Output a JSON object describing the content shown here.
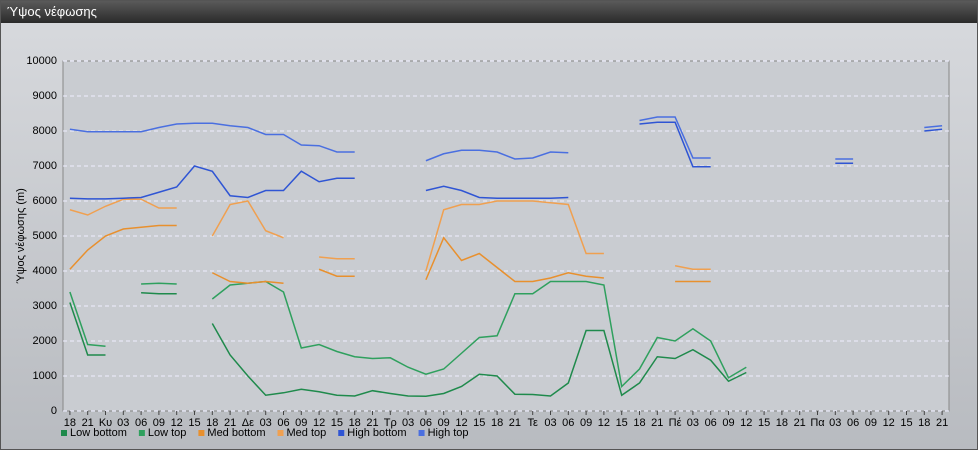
{
  "chart_data": {
    "type": "line",
    "title": "Ύψος νέφωσης",
    "ylabel": "Ύψος νέφωσης (m)",
    "categories": [
      "18",
      "21",
      "Κυ",
      "03",
      "06",
      "09",
      "12",
      "15",
      "18",
      "21",
      "Δε",
      "03",
      "06",
      "09",
      "12",
      "15",
      "18",
      "21",
      "Τρ",
      "03",
      "06",
      "09",
      "12",
      "15",
      "18",
      "21",
      "Τε",
      "03",
      "06",
      "09",
      "12",
      "15",
      "18",
      "21",
      "Πέ",
      "03",
      "06",
      "09",
      "12",
      "15",
      "18",
      "21",
      "Πα",
      "03",
      "06",
      "09",
      "12",
      "15",
      "18",
      "21"
    ],
    "ylim": [
      0,
      10000
    ],
    "yticks": [
      0,
      1000,
      2000,
      3000,
      4000,
      5000,
      6000,
      7000,
      8000,
      9000,
      10000
    ],
    "grid": true,
    "series": [
      {
        "name": "Low bottom",
        "color": "#1f8a4c",
        "values": [
          3100,
          1600,
          1600,
          null,
          3380,
          3350,
          3350,
          null,
          2500,
          1600,
          1000,
          450,
          520,
          620,
          550,
          450,
          430,
          580,
          500,
          430,
          420,
          500,
          700,
          1050,
          1000,
          480,
          470,
          430,
          800,
          2300,
          2300,
          450,
          800,
          1550,
          1500,
          1750,
          1450,
          850,
          1100,
          null,
          null,
          null,
          null,
          null,
          null,
          null,
          null,
          null,
          null,
          null
        ]
      },
      {
        "name": "Low top",
        "color": "#2fa05e",
        "values": [
          3400,
          1900,
          1850,
          null,
          3630,
          3650,
          3630,
          null,
          3200,
          3600,
          3650,
          3700,
          3400,
          1800,
          1900,
          1700,
          1550,
          1500,
          1520,
          1250,
          1050,
          1200,
          1650,
          2100,
          2150,
          3350,
          3350,
          3700,
          3700,
          3700,
          3600,
          700,
          1200,
          2100,
          2000,
          2350,
          2000,
          950,
          1250,
          null,
          null,
          null,
          null,
          null,
          null,
          null,
          null,
          null,
          null,
          null
        ]
      },
      {
        "name": "Med bottom",
        "color": "#e8902e",
        "values": [
          4050,
          4600,
          5000,
          5200,
          5250,
          5300,
          5300,
          null,
          3950,
          3700,
          3650,
          3700,
          3650,
          null,
          4050,
          3850,
          3850,
          null,
          null,
          null,
          3750,
          4950,
          4300,
          4500,
          4100,
          3700,
          3700,
          3800,
          3950,
          3850,
          3800,
          null,
          null,
          null,
          3700,
          3700,
          3700,
          null,
          null,
          null,
          null,
          null,
          null,
          null,
          null,
          null,
          null,
          null,
          null,
          null
        ]
      },
      {
        "name": "Med top",
        "color": "#f0a050",
        "values": [
          5750,
          5600,
          5850,
          6050,
          6050,
          5800,
          5800,
          null,
          5000,
          5900,
          6000,
          5150,
          4950,
          null,
          4400,
          4350,
          4350,
          null,
          null,
          null,
          4000,
          5750,
          5900,
          5900,
          6000,
          6000,
          6000,
          5950,
          5900,
          4500,
          4500,
          null,
          null,
          null,
          4150,
          4050,
          4050,
          null,
          null,
          null,
          null,
          null,
          null,
          null,
          null,
          null,
          null,
          null,
          null,
          null
        ]
      },
      {
        "name": "High bottom",
        "color": "#2f55d4",
        "values": [
          6080,
          6060,
          6060,
          6080,
          6100,
          6250,
          6400,
          7000,
          6850,
          6150,
          6100,
          6300,
          6300,
          6850,
          6550,
          6650,
          6650,
          null,
          null,
          null,
          6300,
          6420,
          6300,
          6100,
          6080,
          6080,
          6080,
          6080,
          6100,
          null,
          null,
          null,
          8200,
          8250,
          8250,
          6980,
          6980,
          null,
          null,
          null,
          null,
          null,
          null,
          7080,
          7080,
          null,
          null,
          null,
          8000,
          8050
        ]
      },
      {
        "name": "High top",
        "color": "#4a6fe0",
        "values": [
          8050,
          7980,
          7980,
          7980,
          7980,
          8100,
          8200,
          8220,
          8220,
          8150,
          8100,
          7900,
          7900,
          7600,
          7580,
          7400,
          7400,
          null,
          null,
          null,
          7150,
          7350,
          7450,
          7450,
          7400,
          7200,
          7230,
          7400,
          7380,
          null,
          null,
          null,
          8300,
          8400,
          8400,
          7230,
          7230,
          null,
          null,
          null,
          null,
          null,
          null,
          7200,
          7200,
          null,
          null,
          null,
          8100,
          8150
        ]
      }
    ]
  }
}
